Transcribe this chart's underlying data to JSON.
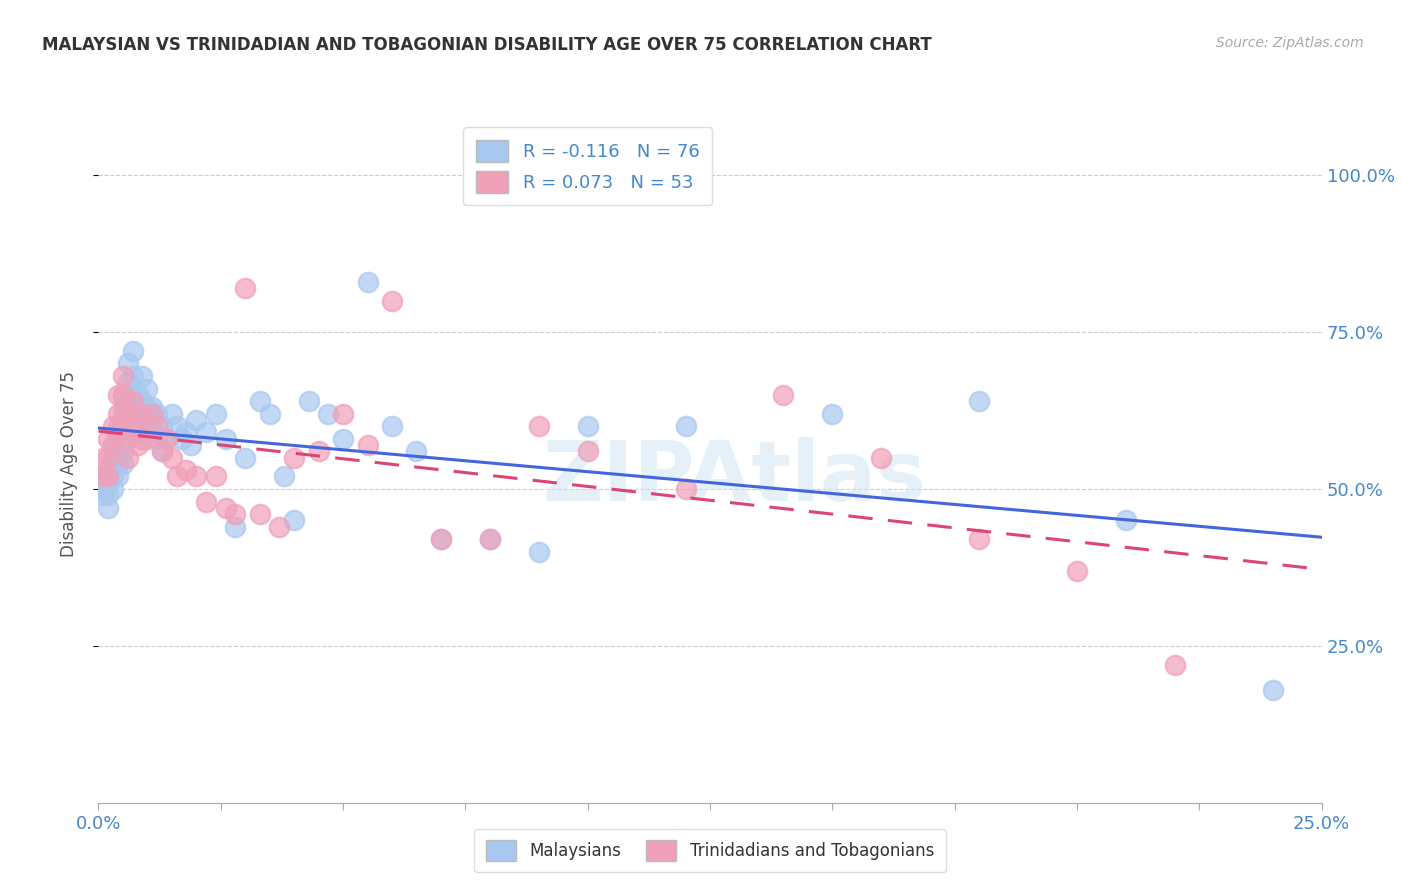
{
  "title": "MALAYSIAN VS TRINIDADIAN AND TOBAGONIAN DISABILITY AGE OVER 75 CORRELATION CHART",
  "source": "Source: ZipAtlas.com",
  "ylabel": "Disability Age Over 75",
  "malaysian_R": -0.116,
  "malaysian_N": 76,
  "trinidadian_R": 0.073,
  "trinidadian_N": 53,
  "blue_color": "#A8C8F0",
  "pink_color": "#F0A0B8",
  "blue_line_color": "#4466DD",
  "pink_line_color": "#DD4477",
  "watermark": "ZIPAtlas",
  "bg_color": "#FFFFFF",
  "grid_color": "#CCCCCC",
  "tick_color": "#4488CC",
  "title_color": "#333333",
  "ylabel_color": "#555555",
  "xlim": [
    0.0,
    0.25
  ],
  "ylim": [
    0.0,
    1.08
  ],
  "yticks": [
    0.25,
    0.5,
    0.75,
    1.0
  ],
  "xtick_positions": [
    0.0,
    0.025,
    0.05,
    0.075,
    0.1,
    0.125,
    0.15,
    0.175,
    0.2,
    0.225,
    0.25
  ],
  "malaysians_x": [
    0.001,
    0.001,
    0.001,
    0.002,
    0.002,
    0.002,
    0.002,
    0.003,
    0.003,
    0.003,
    0.003,
    0.003,
    0.004,
    0.004,
    0.004,
    0.004,
    0.004,
    0.005,
    0.005,
    0.005,
    0.005,
    0.005,
    0.005,
    0.006,
    0.006,
    0.006,
    0.006,
    0.007,
    0.007,
    0.007,
    0.007,
    0.008,
    0.008,
    0.008,
    0.009,
    0.009,
    0.01,
    0.01,
    0.01,
    0.011,
    0.011,
    0.012,
    0.012,
    0.013,
    0.013,
    0.014,
    0.015,
    0.016,
    0.017,
    0.018,
    0.019,
    0.02,
    0.022,
    0.024,
    0.026,
    0.028,
    0.03,
    0.033,
    0.035,
    0.038,
    0.04,
    0.043,
    0.047,
    0.05,
    0.055,
    0.06,
    0.065,
    0.07,
    0.08,
    0.09,
    0.1,
    0.12,
    0.15,
    0.18,
    0.21,
    0.24
  ],
  "malaysians_y": [
    0.52,
    0.5,
    0.49,
    0.53,
    0.51,
    0.49,
    0.47,
    0.57,
    0.55,
    0.54,
    0.52,
    0.5,
    0.6,
    0.58,
    0.56,
    0.54,
    0.52,
    0.65,
    0.63,
    0.61,
    0.58,
    0.56,
    0.54,
    0.7,
    0.67,
    0.64,
    0.62,
    0.72,
    0.68,
    0.65,
    0.62,
    0.65,
    0.62,
    0.59,
    0.68,
    0.64,
    0.66,
    0.63,
    0.6,
    0.63,
    0.59,
    0.62,
    0.58,
    0.6,
    0.56,
    0.58,
    0.62,
    0.6,
    0.58,
    0.59,
    0.57,
    0.61,
    0.59,
    0.62,
    0.58,
    0.44,
    0.55,
    0.64,
    0.62,
    0.52,
    0.45,
    0.64,
    0.62,
    0.58,
    0.83,
    0.6,
    0.56,
    0.42,
    0.42,
    0.4,
    0.6,
    0.6,
    0.62,
    0.64,
    0.45,
    0.18
  ],
  "trinidadians_x": [
    0.001,
    0.001,
    0.002,
    0.002,
    0.002,
    0.003,
    0.003,
    0.004,
    0.004,
    0.004,
    0.005,
    0.005,
    0.005,
    0.006,
    0.006,
    0.006,
    0.007,
    0.007,
    0.008,
    0.008,
    0.009,
    0.009,
    0.01,
    0.011,
    0.012,
    0.013,
    0.014,
    0.015,
    0.016,
    0.018,
    0.02,
    0.022,
    0.024,
    0.026,
    0.028,
    0.03,
    0.033,
    0.037,
    0.04,
    0.045,
    0.05,
    0.055,
    0.06,
    0.07,
    0.08,
    0.09,
    0.1,
    0.12,
    0.14,
    0.16,
    0.18,
    0.2,
    0.22
  ],
  "trinidadians_y": [
    0.55,
    0.52,
    0.58,
    0.55,
    0.52,
    0.6,
    0.57,
    0.65,
    0.62,
    0.59,
    0.68,
    0.65,
    0.62,
    0.62,
    0.58,
    0.55,
    0.64,
    0.6,
    0.6,
    0.57,
    0.62,
    0.58,
    0.58,
    0.62,
    0.6,
    0.56,
    0.58,
    0.55,
    0.52,
    0.53,
    0.52,
    0.48,
    0.52,
    0.47,
    0.46,
    0.82,
    0.46,
    0.44,
    0.55,
    0.56,
    0.62,
    0.57,
    0.8,
    0.42,
    0.42,
    0.6,
    0.56,
    0.5,
    0.65,
    0.55,
    0.42,
    0.37,
    0.22
  ]
}
